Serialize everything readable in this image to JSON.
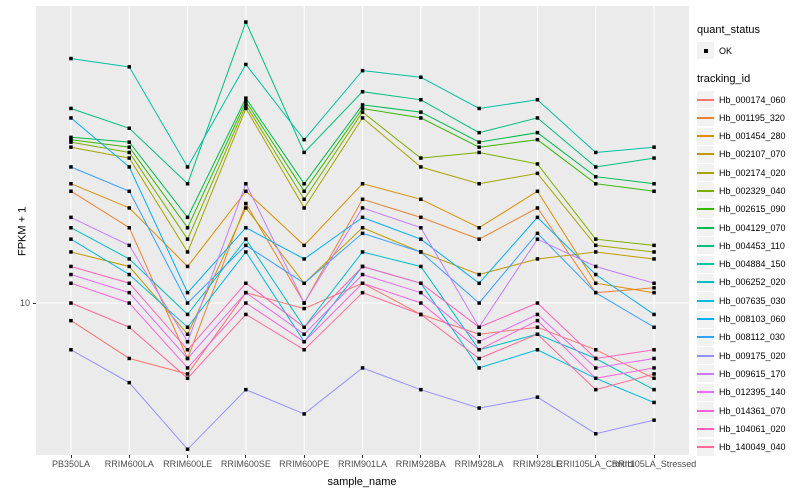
{
  "chart_data": {
    "type": "line",
    "title": "",
    "xlabel": "sample_name",
    "ylabel": "FPKM + 1",
    "y_scale": "log10",
    "y_tick_labels": [
      "10"
    ],
    "ylim_log10": [
      0.38,
      2.19
    ],
    "grid": "ggplot-default",
    "legend_position": "right",
    "panel_bg": "#EBEBEB",
    "gridline_color": "#FFFFFF",
    "point_color": "#000000",
    "categories": [
      "PB350LA",
      "RRIM600LA",
      "RRIM600LE",
      "RRIM600SE",
      "RRIM600PE",
      "RRIM901LA",
      "RRIM928BA",
      "RRIM928LA",
      "RRIM928LE",
      "RRII105LA_Control",
      "RRII105LA_Stressed"
    ],
    "series": [
      {
        "name": "Hb_000174_060",
        "color": "#F8766D",
        "values": [
          8.5,
          6.0,
          5.2,
          11,
          9.5,
          12,
          9,
          7.5,
          8,
          6.5,
          5.0
        ]
      },
      {
        "name": "Hb_001195_320",
        "color": "#EA8331",
        "values": [
          28,
          20,
          6.0,
          25,
          10,
          26,
          22,
          18,
          24,
          11,
          11.5
        ]
      },
      {
        "name": "Hb_001454_280",
        "color": "#D89000",
        "values": [
          30,
          24,
          14,
          28,
          17,
          30,
          26,
          20,
          28,
          12,
          11
        ]
      },
      {
        "name": "Hb_002107_070",
        "color": "#C09B00",
        "values": [
          16,
          14,
          7.5,
          24,
          12,
          20,
          16,
          13,
          15,
          16,
          15
        ]
      },
      {
        "name": "Hb_002174_020",
        "color": "#A3A500",
        "values": [
          42,
          38,
          16,
          60,
          24,
          55,
          35,
          30,
          33,
          17,
          16
        ]
      },
      {
        "name": "Hb_002329_040",
        "color": "#7CAE00",
        "values": [
          44,
          40,
          18,
          62,
          26,
          58,
          38,
          40,
          36,
          18,
          17
        ]
      },
      {
        "name": "Hb_002615_090",
        "color": "#39B600",
        "values": [
          45,
          42,
          20,
          64,
          28,
          60,
          55,
          42,
          45,
          30,
          28
        ]
      },
      {
        "name": "Hb_004129_070",
        "color": "#00BB4E",
        "values": [
          46,
          44,
          22,
          66,
          30,
          62,
          58,
          44,
          48,
          32,
          30
        ]
      },
      {
        "name": "Hb_004453_110",
        "color": "#00BF7D",
        "values": [
          60,
          50,
          30,
          133,
          40,
          70,
          65,
          48,
          55,
          35,
          38
        ]
      },
      {
        "name": "Hb_004884_150",
        "color": "#00C1A3",
        "values": [
          95,
          88,
          35,
          90,
          45,
          85,
          80,
          60,
          65,
          40,
          42
        ]
      },
      {
        "name": "Hb_006252_020",
        "color": "#00BFC4",
        "values": [
          20,
          15,
          9,
          18,
          8,
          16,
          14,
          6.5,
          7.5,
          6.0,
          4.5
        ]
      },
      {
        "name": "Hb_007635_030",
        "color": "#00BAE0",
        "values": [
          18,
          13,
          8,
          16,
          7,
          14,
          12,
          5.5,
          6.5,
          5.0,
          4.0
        ]
      },
      {
        "name": "Hb_008103_060",
        "color": "#00B0F6",
        "values": [
          55,
          35,
          11,
          20,
          15,
          22,
          18,
          12,
          22,
          13,
          9
        ]
      },
      {
        "name": "Hb_008112_030",
        "color": "#35A2FF",
        "values": [
          35,
          28,
          10,
          17,
          12,
          19,
          16,
          10,
          19,
          11,
          8
        ]
      },
      {
        "name": "Hb_009175_020",
        "color": "#9590FF",
        "values": [
          6.5,
          4.8,
          2.6,
          4.5,
          3.6,
          5.5,
          4.5,
          3.8,
          4.2,
          3.0,
          3.4
        ]
      },
      {
        "name": "Hb_009615_170",
        "color": "#C77CFF",
        "values": [
          22,
          17,
          7,
          30,
          10,
          24,
          20,
          8,
          18,
          14,
          12
        ]
      },
      {
        "name": "Hb_012395_140",
        "color": "#E76BF3",
        "values": [
          13,
          11,
          6,
          11,
          7.5,
          13,
          11,
          7,
          9,
          5.5,
          6.0
        ]
      },
      {
        "name": "Hb_014361_070",
        "color": "#FA62DB",
        "values": [
          12,
          10,
          5.5,
          10,
          7,
          12,
          10,
          6.5,
          8.5,
          5.0,
          5.5
        ]
      },
      {
        "name": "Hb_104061_020",
        "color": "#FF62BC",
        "values": [
          14,
          12,
          6.5,
          12,
          8,
          14,
          12,
          8,
          10,
          6.0,
          6.5
        ]
      },
      {
        "name": "Hb_140049_040",
        "color": "#FF6A98",
        "values": [
          10,
          8,
          5,
          9,
          6.5,
          11,
          9,
          6,
          7.5,
          4.5,
          5.2
        ]
      }
    ]
  },
  "legend": {
    "quant_status": {
      "title": "quant_status",
      "items": [
        {
          "label": "OK",
          "marker": "black-point"
        }
      ]
    },
    "tracking_id": {
      "title": "tracking_id"
    }
  }
}
